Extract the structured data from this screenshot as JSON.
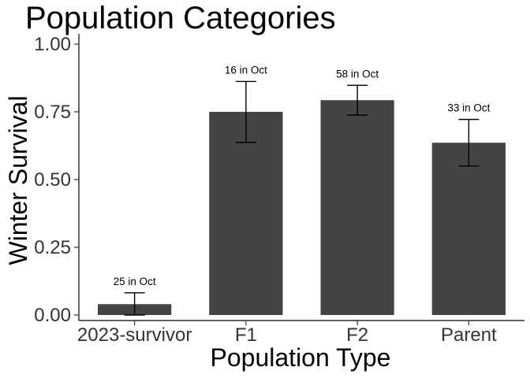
{
  "chart_data": {
    "type": "bar",
    "title": "Population Categories",
    "xlabel": "Population Type",
    "ylabel": "Winter Survival",
    "categories": [
      "2023-survivor",
      "F1",
      "F2",
      "Parent"
    ],
    "values": [
      0.04,
      0.75,
      0.793,
      0.636
    ],
    "error_low": [
      0.0,
      0.637,
      0.738,
      0.55
    ],
    "error_high": [
      0.082,
      0.862,
      0.848,
      0.722
    ],
    "bar_labels": [
      "25 in Oct",
      "16 in Oct",
      "58 in Oct",
      "33 in Oct"
    ],
    "ylim": [
      0,
      1
    ],
    "yticks": [
      0,
      0.25,
      0.5,
      0.75,
      1.0
    ],
    "ytick_labels": [
      "0.00",
      "0.25",
      "0.50",
      "0.75",
      "1.00"
    ],
    "bar_color": "#444444",
    "grid": false,
    "legend": "none"
  }
}
